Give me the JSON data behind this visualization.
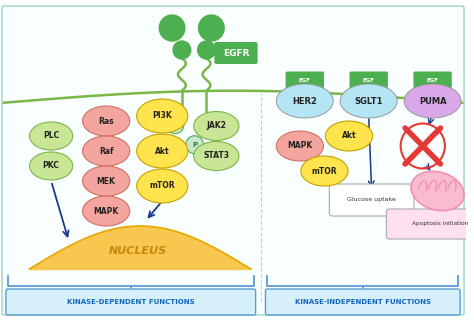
{
  "background_color": "#ffffff",
  "cell_membrane_color": "#7ab648",
  "egfr_label": "EGFR",
  "egfr_box_color": "#4caf50",
  "ligand_color": "#4caf50",
  "kinase_dep_label": "KINASE-DEPENDENT FUNCTIONS",
  "kinase_indep_label": "KINASE-INDEPENDENT FUNCTIONS",
  "nucleus_color_inner": "#f9c74f",
  "nucleus_color_outer": "#e6a800",
  "nucleus_label": "NUCLEUS",
  "nucleus_label_color": "#c8860a",
  "p_circle_color": "#c8e6c9",
  "p_circle_border": "#4caf50",
  "arrow_color": "#1a3a8a",
  "pink_color": "#f4a5a0",
  "pink_border": "#d07060",
  "yellow_color": "#ffe44d",
  "yellow_border": "#c8a000",
  "green_color": "#c8e696",
  "green_border": "#7ab648",
  "her2_color": "#b3e5f5",
  "sglt1_color": "#b3e5f5",
  "puma_color": "#d9a8e8",
  "egf_tag_color": "#4caf50",
  "glucose_box_label": "Glucose uptake",
  "apoptosis_box_label": "Apoptosis initiation",
  "red_cross_color": "#e53935",
  "mitochondria_color": "#f8bbd0",
  "mito_inner_color": "#f48fb1",
  "bottom_label_color": "#1565c0",
  "bottom_box_fill": "#d6f0fa",
  "bottom_box_border": "#5b9bd5",
  "bracket_color": "#5b9bd5"
}
